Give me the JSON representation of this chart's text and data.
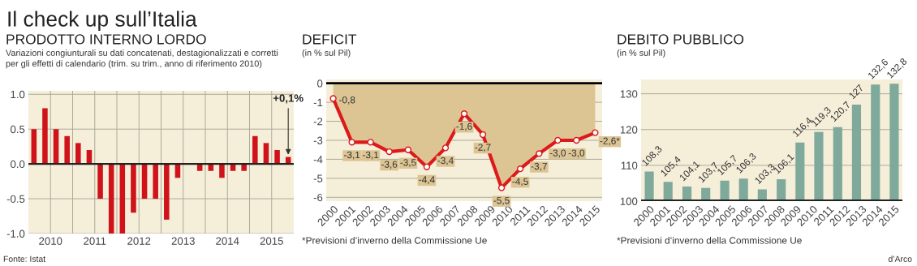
{
  "chart_data": [
    {
      "type": "bar",
      "title": "PRODOTTO INTERNO LORDO",
      "subtitle": "Variazioni congiunturali su dati concatenati, destagionalizzati e corretti\nper gli effetti di calendario (trim. su trim., anno di riferimento 2010)",
      "x": [
        2010.125,
        2010.375,
        2010.625,
        2010.875,
        2011.125,
        2011.375,
        2011.625,
        2011.875,
        2012.125,
        2012.375,
        2012.625,
        2012.875,
        2013.125,
        2013.375,
        2013.625,
        2013.875,
        2014.125,
        2014.375,
        2014.625,
        2014.875,
        2015.125,
        2015.375,
        2015.625,
        2015.875
      ],
      "values": [
        0.5,
        0.8,
        0.5,
        0.4,
        0.3,
        0.2,
        -0.5,
        -1.0,
        -1.0,
        -0.7,
        -0.5,
        -0.5,
        -0.8,
        -0.2,
        0.0,
        -0.1,
        -0.1,
        -0.2,
        -0.1,
        -0.1,
        0.4,
        0.3,
        0.2,
        0.1
      ],
      "color": "#d0121b",
      "xlim": [
        2010,
        2016
      ],
      "xticks": [
        {
          "value": 2010.5,
          "label": "2010"
        },
        {
          "value": 2011,
          "label": null
        },
        {
          "value": 2011.5,
          "label": "2011"
        },
        {
          "value": 2012,
          "label": null
        },
        {
          "value": 2012.5,
          "label": "2012"
        },
        {
          "value": 2013,
          "label": null
        },
        {
          "value": 2013.5,
          "label": "2013"
        },
        {
          "value": 2014,
          "label": null
        },
        {
          "value": 2014.5,
          "label": "2014"
        },
        {
          "value": 2015,
          "label": null
        },
        {
          "value": 2015.5,
          "label": "2015"
        }
      ],
      "ylim": [
        -1.0,
        1.05
      ],
      "yticks": [
        {
          "value": 1,
          "label": "1.0"
        },
        0.5,
        {
          "value": 0,
          "label": "0.0"
        },
        -0.5,
        {
          "value": -1,
          "label": "-1.0"
        }
      ],
      "grid": true,
      "annotations": [
        "Il check up sull’Italia",
        "Fonte: Istat",
        {
          "text": "+0,1%",
          "x": 2015.875,
          "y": 0.1
        }
      ]
    },
    {
      "type": "line",
      "title": "DEFICIT",
      "subtitle": "(in % sul Pil)",
      "series": [
        {
          "type": "area",
          "color": "#dc1a1a",
          "x": [
            2000,
            2001.07,
            2002.14,
            2003.21,
            2004.29,
            2005.36,
            2006.43,
            2007.5,
            2008.57,
            2009.64,
            2010.71,
            2011.79,
            2012.86,
            2013.93,
            2015
          ],
          "values": [
            -0.8,
            -3.1,
            -3.1,
            -3.6,
            -3.5,
            -4.4,
            -3.4,
            -1.6,
            -2.7,
            -5.5,
            -4.5,
            -3.7,
            -3.0,
            -3.0,
            -2.6
          ],
          "value_labels": [
            "-0,8",
            "-3,1",
            "-3,1",
            "-3,6",
            "-3,5",
            "-4,4",
            "-3,4",
            "-1,6",
            "-2,7",
            "-5,5",
            "-4,5",
            "-3,7",
            "-3,0",
            "-3,0",
            "-2,6*"
          ]
        }
      ],
      "marker": "circle",
      "xlim": [
        1999.6,
        2015.4
      ],
      "xticks": [
        2000,
        2001,
        2002,
        2003,
        2004,
        2005,
        2006,
        2007,
        2008,
        2009,
        2010,
        2011,
        2012,
        2013,
        2014,
        2015
      ],
      "ylim": [
        -6.2,
        0.2
      ],
      "yticks": [
        0,
        -1,
        -2,
        -3,
        -4,
        -5,
        -6
      ],
      "grid": "y",
      "ref_lines": [
        {
          "axis": "y",
          "value": 0,
          "color": "#000000"
        }
      ],
      "annotations": [
        "*Previsioni d’inverno della Commissione Ue"
      ]
    },
    {
      "type": "bar",
      "title": "DEBITO PUBBLICO",
      "subtitle": "(in % sul Pil)",
      "x": [
        2000,
        2001.15,
        2002.31,
        2003.46,
        2004.62,
        2005.77,
        2006.92,
        2008.08,
        2009.23,
        2010.38,
        2011.54,
        2012.69,
        2013.85,
        2015
      ],
      "values": [
        108.3,
        105.4,
        104.1,
        103.7,
        105.7,
        106.3,
        103.3,
        106.1,
        116.4,
        119.3,
        120.7,
        127,
        132.6,
        132.8
      ],
      "value_labels": [
        "108,3",
        "105,4",
        "104,1",
        "103,7",
        "105,7",
        "106,3",
        "103,3",
        "106,1",
        "116,4",
        "119,3",
        "120,7",
        "127",
        "132,6",
        "132,8"
      ],
      "color": "#7ea99b",
      "xlim": [
        1999.5,
        2015.5
      ],
      "xticks": [
        2000,
        2001,
        2002,
        2003,
        2004,
        2005,
        2006,
        2007,
        2008,
        2009,
        2010,
        2011,
        2012,
        2013,
        2014,
        2015
      ],
      "ylim": [
        100,
        134
      ],
      "yticks": [
        100,
        110,
        120,
        130
      ],
      "grid": "y",
      "annotations": [
        "*Previsioni d’inverno della Commissione Ue",
        "d’Arco"
      ]
    }
  ]
}
